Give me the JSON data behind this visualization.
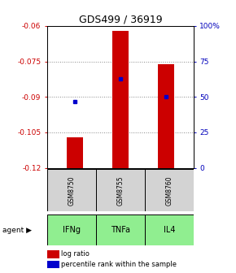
{
  "title": "GDS499 / 36919",
  "title_fontsize": 9,
  "ylim_left": [
    -0.12,
    -0.06
  ],
  "ylim_right": [
    0,
    100
  ],
  "yticks_left": [
    -0.12,
    -0.105,
    -0.09,
    -0.075,
    -0.06
  ],
  "ytick_labels_left": [
    "-0.12",
    "-0.105",
    "-0.09",
    "-0.075",
    "-0.06"
  ],
  "yticks_right": [
    0,
    25,
    50,
    75,
    100
  ],
  "ytick_labels_right": [
    "0",
    "25",
    "50",
    "75",
    "100%"
  ],
  "samples": [
    "GSM8750",
    "GSM8755",
    "GSM8760"
  ],
  "agents": [
    "IFNg",
    "TNFa",
    "IL4"
  ],
  "log_ratios": [
    -0.107,
    -0.062,
    -0.076
  ],
  "percentile_ranks": [
    47,
    63,
    50
  ],
  "bar_color": "#cc0000",
  "dot_color": "#0000cc",
  "sample_bg": "#d3d3d3",
  "agent_bg": "#90EE90",
  "legend_bar_color": "#cc0000",
  "legend_dot_color": "#0000cc",
  "left_axis_color": "#cc0000",
  "right_axis_color": "#0000bb",
  "grid_color": "#888888",
  "bar_width": 0.35,
  "figure_width": 2.9,
  "figure_height": 3.36,
  "dpi": 100
}
